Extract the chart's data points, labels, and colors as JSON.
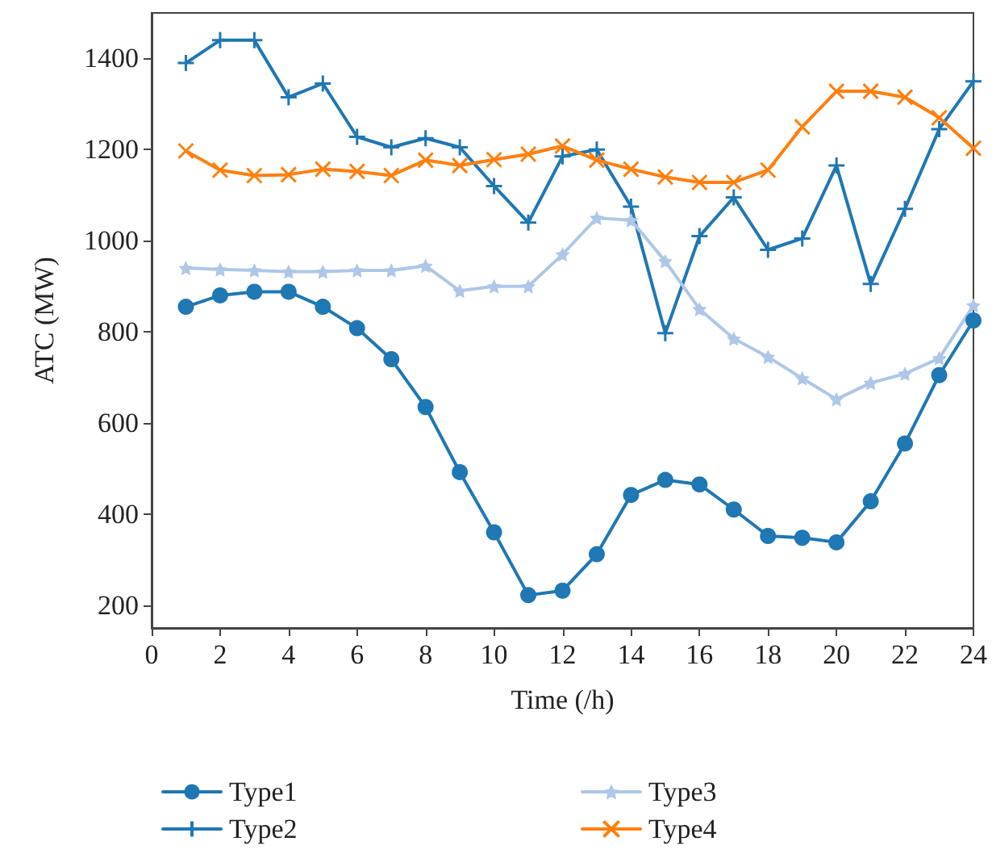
{
  "chart_data": {
    "type": "line",
    "xlabel": "Time (/h)",
    "ylabel": "ATC (MW)",
    "x": [
      1,
      2,
      3,
      4,
      5,
      6,
      7,
      8,
      9,
      10,
      11,
      12,
      13,
      14,
      15,
      16,
      17,
      18,
      19,
      20,
      21,
      22,
      23,
      24
    ],
    "xlim": [
      0,
      24
    ],
    "xticks": [
      0,
      2,
      4,
      6,
      8,
      10,
      12,
      14,
      16,
      18,
      20,
      22,
      24
    ],
    "ylim": [
      150,
      1500
    ],
    "yticks": [
      200,
      400,
      600,
      800,
      1000,
      1200,
      1400
    ],
    "grid": false,
    "legend": "bottom",
    "line_style": "solid",
    "series": [
      {
        "name": "Type1",
        "color": "#1f77b4",
        "marker": "circle",
        "values": [
          855,
          880,
          888,
          888,
          855,
          808,
          740,
          635,
          492,
          360,
          222,
          232,
          312,
          442,
          475,
          465,
          410,
          352,
          348,
          338,
          428,
          555,
          705,
          825
        ]
      },
      {
        "name": "Type2",
        "color": "#1f77b4",
        "marker": "plus",
        "values": [
          1390,
          1440,
          1440,
          1315,
          1345,
          1228,
          1205,
          1225,
          1205,
          1120,
          1040,
          1185,
          1200,
          1075,
          797,
          1010,
          1095,
          980,
          1005,
          1165,
          905,
          1070,
          1245,
          1350
        ]
      },
      {
        "name": "Type3",
        "color": "#aec7e8",
        "marker": "star",
        "values": [
          940,
          937,
          935,
          932,
          932,
          935,
          935,
          945,
          890,
          900,
          900,
          970,
          1050,
          1045,
          955,
          850,
          785,
          745,
          698,
          652,
          688,
          708,
          742,
          858
        ]
      },
      {
        "name": "Type4",
        "color": "#ff7f0e",
        "marker": "cross",
        "values": [
          1197,
          1155,
          1143,
          1145,
          1157,
          1152,
          1143,
          1177,
          1165,
          1178,
          1190,
          1208,
          1177,
          1157,
          1140,
          1128,
          1128,
          1155,
          1250,
          1328,
          1328,
          1315,
          1270,
          1203
        ]
      }
    ]
  }
}
